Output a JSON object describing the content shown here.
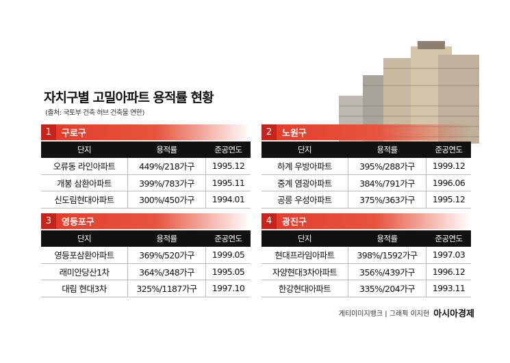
{
  "header": {
    "title": "자치구별 고밀아파트 용적률 현황",
    "source": "(출처: 국토부 건축 허브 건축물 연한)"
  },
  "panels": [
    {
      "number": "1",
      "district": "구로구",
      "columns": [
        "단지",
        "용적률",
        "준공연도"
      ],
      "rows": [
        [
          "오류동 라인아파트",
          "449%/218가구",
          "1995.12"
        ],
        [
          "개봉 삼환아파트",
          "399%/783가구",
          "1995.11"
        ],
        [
          "신도림현대아파트",
          "300%/450가구",
          "1994.01"
        ]
      ]
    },
    {
      "number": "2",
      "district": "노원구",
      "columns": [
        "단지",
        "용적률",
        "준공연도"
      ],
      "rows": [
        [
          "하계 우방아파트",
          "395%/288가구",
          "1999.12"
        ],
        [
          "중계 염광아파트",
          "384%/791가구",
          "1996.06"
        ],
        [
          "공릉 우성아파트",
          "375%/363가구",
          "1995.12"
        ]
      ]
    },
    {
      "number": "3",
      "district": "영등포구",
      "columns": [
        "단지",
        "용적률",
        "준공연도"
      ],
      "rows": [
        [
          "영등포삼환아파트",
          "369%/520가구",
          "1999.05"
        ],
        [
          "래미안당산1차",
          "364%/348가구",
          "1995.05"
        ],
        [
          "대림 현대3차",
          "325%/1187가구",
          "1997.10"
        ]
      ]
    },
    {
      "number": "4",
      "district": "광진구",
      "columns": [
        "단지",
        "용적률",
        "준공연도"
      ],
      "rows": [
        [
          "현대프라임아파트",
          "398%/1592가구",
          "1997.03"
        ],
        [
          "자양현대3차아파트",
          "356%/439가구",
          "1996.12"
        ],
        [
          "한강현대아파트",
          "335%/204가구",
          "1993.11"
        ]
      ]
    }
  ],
  "footer": {
    "credit": "게티이미지뱅크 | 그래픽 이지현",
    "brand": "아시아경제"
  }
}
